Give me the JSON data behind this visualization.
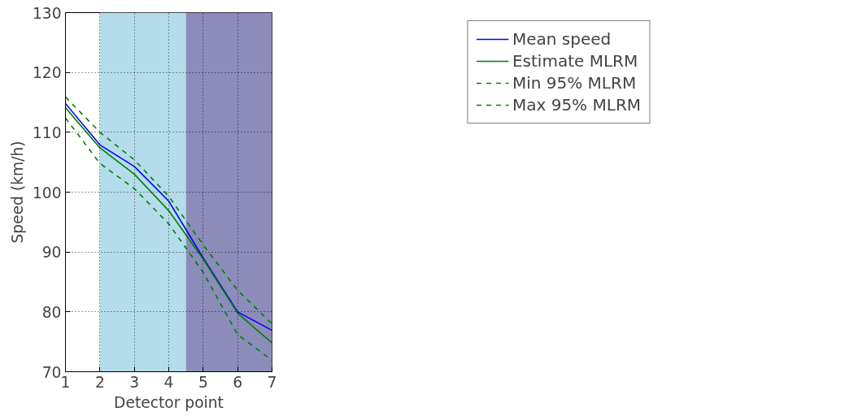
{
  "chart_data": {
    "type": "line",
    "xlabel": "Detector point",
    "ylabel": "Speed (km/h)",
    "x": [
      1,
      2,
      3,
      4,
      5,
      6,
      7
    ],
    "xlim": [
      1,
      7
    ],
    "xticks": [
      1,
      2,
      3,
      4,
      5,
      6,
      7
    ],
    "ylim": [
      70,
      130
    ],
    "yticks": [
      70,
      80,
      90,
      100,
      110,
      120,
      130
    ],
    "grid": true,
    "legend": "top right",
    "bands": [
      {
        "axis": "x",
        "from": 2,
        "to": 4.5,
        "color": "#b4dcea"
      },
      {
        "axis": "x",
        "from": 4.5,
        "to": 7,
        "color": "#8c8cba"
      }
    ],
    "series": [
      {
        "name": "Mean speed",
        "color": "#0000ff",
        "line_style": "solid",
        "values": [
          114.8,
          107.9,
          104.3,
          98.5,
          89,
          80,
          76.9
        ]
      },
      {
        "name": "Estimate MLRM",
        "color": "#008000",
        "line_style": "solid",
        "values": [
          114.1,
          107.4,
          103,
          96.9,
          88.8,
          79.8,
          74.8
        ]
      },
      {
        "name": "Min 95% MLRM",
        "color": "#008000",
        "line_style": "dashed",
        "values": [
          112.4,
          104.8,
          100.6,
          94.7,
          86.6,
          76.2,
          71.9
        ]
      },
      {
        "name": "Max 95% MLRM",
        "color": "#008000",
        "line_style": "dashed",
        "values": [
          115.9,
          110,
          105.4,
          99.3,
          91.2,
          83.6,
          78
        ]
      }
    ]
  }
}
